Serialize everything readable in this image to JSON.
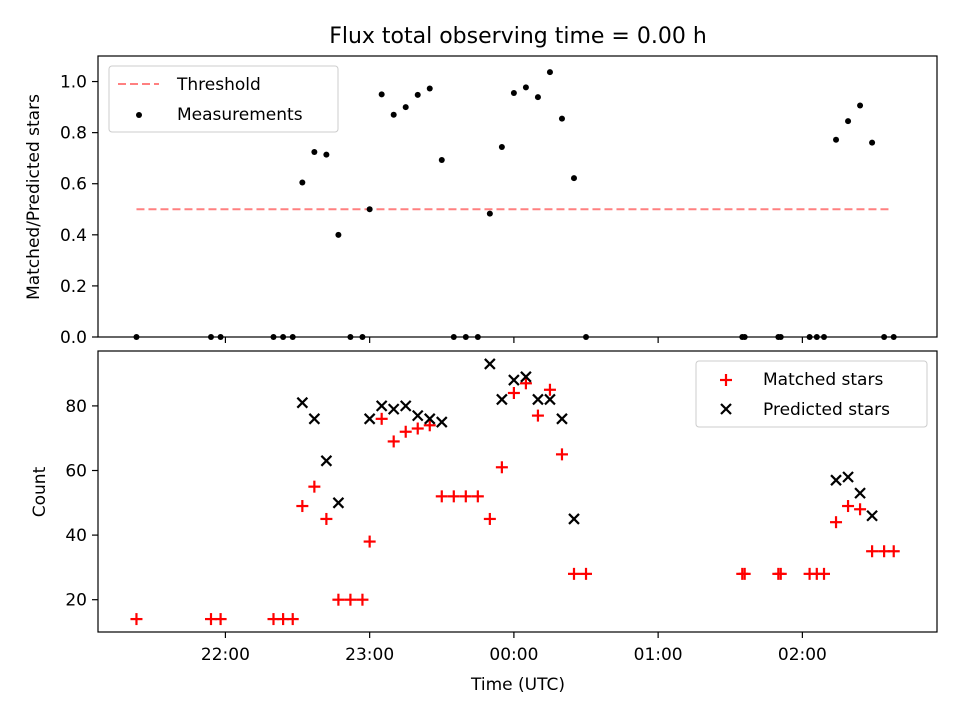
{
  "chart_data": [
    {
      "type": "scatter",
      "title": "Flux total observing time = 0.00 h",
      "xlabel": "",
      "ylabel": "Matched/Predicted stars",
      "ylim": [
        0,
        1.1
      ],
      "yticks": [
        "0.0",
        "0.2",
        "0.4",
        "0.6",
        "0.8",
        "1.0"
      ],
      "threshold": {
        "name": "Threshold",
        "value": 0.5,
        "x_start": "21:23",
        "x_end": "02:37",
        "color": "#ff8080"
      },
      "legend": {
        "position": "top-left",
        "entries": [
          "Threshold",
          "Measurements"
        ]
      },
      "series": [
        {
          "name": "Measurements",
          "color": "#000000",
          "marker": "dot",
          "points": [
            [
              "21:23",
              0.0
            ],
            [
              "21:54",
              0.0
            ],
            [
              "21:58",
              0.0
            ],
            [
              "22:20",
              0.0
            ],
            [
              "22:24",
              0.0
            ],
            [
              "22:28",
              0.0
            ],
            [
              "22:32",
              0.605
            ],
            [
              "22:37",
              0.724
            ],
            [
              "22:42",
              0.714
            ],
            [
              "22:47",
              0.4
            ],
            [
              "22:52",
              0.0
            ],
            [
              "22:57",
              0.0
            ],
            [
              "23:00",
              0.5
            ],
            [
              "23:05",
              0.95
            ],
            [
              "23:10",
              0.87
            ],
            [
              "23:15",
              0.9
            ],
            [
              "23:20",
              0.948
            ],
            [
              "23:25",
              0.973
            ],
            [
              "23:30",
              0.693
            ],
            [
              "23:35",
              0.0
            ],
            [
              "23:40",
              0.0
            ],
            [
              "23:45",
              0.0
            ],
            [
              "23:50",
              0.483
            ],
            [
              "23:55",
              0.744
            ],
            [
              "00:00",
              0.955
            ],
            [
              "00:05",
              0.977
            ],
            [
              "00:10",
              0.939
            ],
            [
              "00:15",
              1.037
            ],
            [
              "00:20",
              0.855
            ],
            [
              "00:25",
              0.622
            ],
            [
              "00:30",
              0.0
            ],
            [
              "01:35",
              0.0
            ],
            [
              "01:36",
              0.0
            ],
            [
              "01:50",
              0.0
            ],
            [
              "01:51",
              0.0
            ],
            [
              "02:03",
              0.0
            ],
            [
              "02:06",
              0.0
            ],
            [
              "02:09",
              0.0
            ],
            [
              "02:14",
              0.772
            ],
            [
              "02:19",
              0.845
            ],
            [
              "02:24",
              0.906
            ],
            [
              "02:29",
              0.761
            ],
            [
              "02:34",
              0.0
            ],
            [
              "02:38",
              0.0
            ]
          ]
        }
      ]
    },
    {
      "type": "scatter",
      "title": "",
      "xlabel": "Time (UTC)",
      "ylabel": "Count",
      "ylim": [
        10,
        97
      ],
      "yticks": [
        "20",
        "40",
        "60",
        "80"
      ],
      "xticks": [
        "22:00",
        "23:00",
        "00:00",
        "01:00",
        "02:00"
      ],
      "legend": {
        "position": "top-right",
        "entries": [
          "Matched stars",
          "Predicted stars"
        ]
      },
      "series": [
        {
          "name": "Matched stars",
          "color": "#ff0000",
          "marker": "plus",
          "points": [
            [
              "21:23",
              14
            ],
            [
              "21:54",
              14
            ],
            [
              "21:58",
              14
            ],
            [
              "22:20",
              14
            ],
            [
              "22:24",
              14
            ],
            [
              "22:28",
              14
            ],
            [
              "22:32",
              49
            ],
            [
              "22:37",
              55
            ],
            [
              "22:42",
              45
            ],
            [
              "22:47",
              20
            ],
            [
              "22:52",
              20
            ],
            [
              "22:57",
              20
            ],
            [
              "23:00",
              38
            ],
            [
              "23:05",
              76
            ],
            [
              "23:10",
              69
            ],
            [
              "23:15",
              72
            ],
            [
              "23:20",
              73
            ],
            [
              "23:25",
              74
            ],
            [
              "23:30",
              52
            ],
            [
              "23:35",
              52
            ],
            [
              "23:40",
              52
            ],
            [
              "23:45",
              52
            ],
            [
              "23:50",
              45
            ],
            [
              "23:55",
              61
            ],
            [
              "00:00",
              84
            ],
            [
              "00:05",
              87
            ],
            [
              "00:10",
              77
            ],
            [
              "00:15",
              85
            ],
            [
              "00:20",
              65
            ],
            [
              "00:25",
              28
            ],
            [
              "00:30",
              28
            ],
            [
              "01:35",
              28
            ],
            [
              "01:36",
              28
            ],
            [
              "01:50",
              28
            ],
            [
              "01:51",
              28
            ],
            [
              "02:03",
              28
            ],
            [
              "02:06",
              28
            ],
            [
              "02:09",
              28
            ],
            [
              "02:14",
              44
            ],
            [
              "02:19",
              49
            ],
            [
              "02:24",
              48
            ],
            [
              "02:29",
              35
            ],
            [
              "02:34",
              35
            ],
            [
              "02:38",
              35
            ]
          ]
        },
        {
          "name": "Predicted stars",
          "color": "#000000",
          "marker": "x",
          "points": [
            [
              "22:32",
              81
            ],
            [
              "22:37",
              76
            ],
            [
              "22:42",
              63
            ],
            [
              "22:47",
              50
            ],
            [
              "23:00",
              76
            ],
            [
              "23:05",
              80
            ],
            [
              "23:10",
              79
            ],
            [
              "23:15",
              80
            ],
            [
              "23:20",
              77
            ],
            [
              "23:25",
              76
            ],
            [
              "23:30",
              75
            ],
            [
              "23:50",
              93
            ],
            [
              "23:55",
              82
            ],
            [
              "00:00",
              88
            ],
            [
              "00:05",
              89
            ],
            [
              "00:10",
              82
            ],
            [
              "00:15",
              82
            ],
            [
              "00:20",
              76
            ],
            [
              "00:25",
              45
            ],
            [
              "02:14",
              57
            ],
            [
              "02:19",
              58
            ],
            [
              "02:24",
              53
            ],
            [
              "02:29",
              46
            ]
          ]
        }
      ]
    }
  ]
}
